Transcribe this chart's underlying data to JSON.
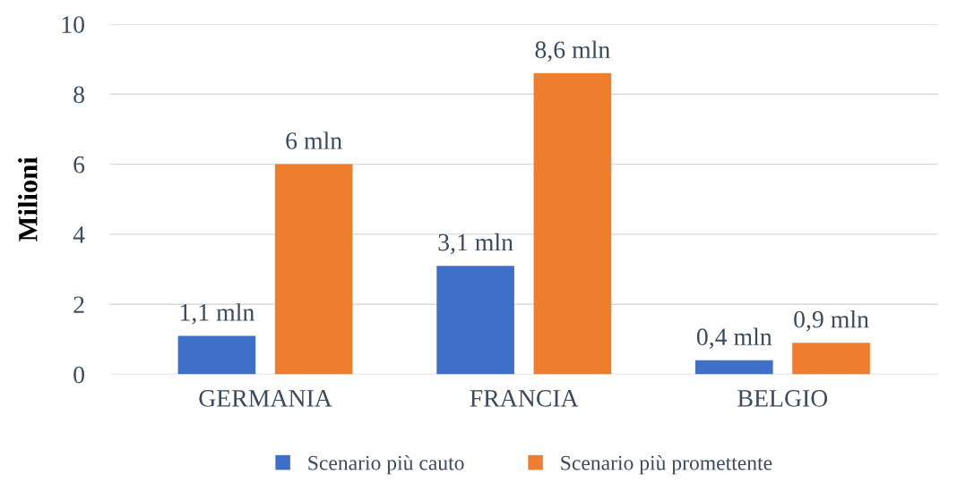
{
  "chart_data": {
    "type": "bar",
    "ylabel": "Milioni",
    "categories": [
      "GERMANIA",
      "FRANCIA",
      "BELGIO"
    ],
    "series": [
      {
        "name": "Scenario più cauto",
        "color": "#3f70c9",
        "values": [
          1.1,
          3.1,
          0.4
        ],
        "value_labels": [
          "1,1 mln",
          "3,1 mln",
          "0,4 mln"
        ]
      },
      {
        "name": "Scenario più promettente",
        "color": "#ef7d2e",
        "values": [
          6,
          8.6,
          0.9
        ],
        "value_labels": [
          "6 mln",
          "8,6 mln",
          "0,9 mln"
        ]
      }
    ],
    "ylim": [
      0,
      10
    ],
    "yticks": [
      0,
      2,
      4,
      6,
      8,
      10
    ],
    "grid": "y",
    "legend": "bottom"
  }
}
